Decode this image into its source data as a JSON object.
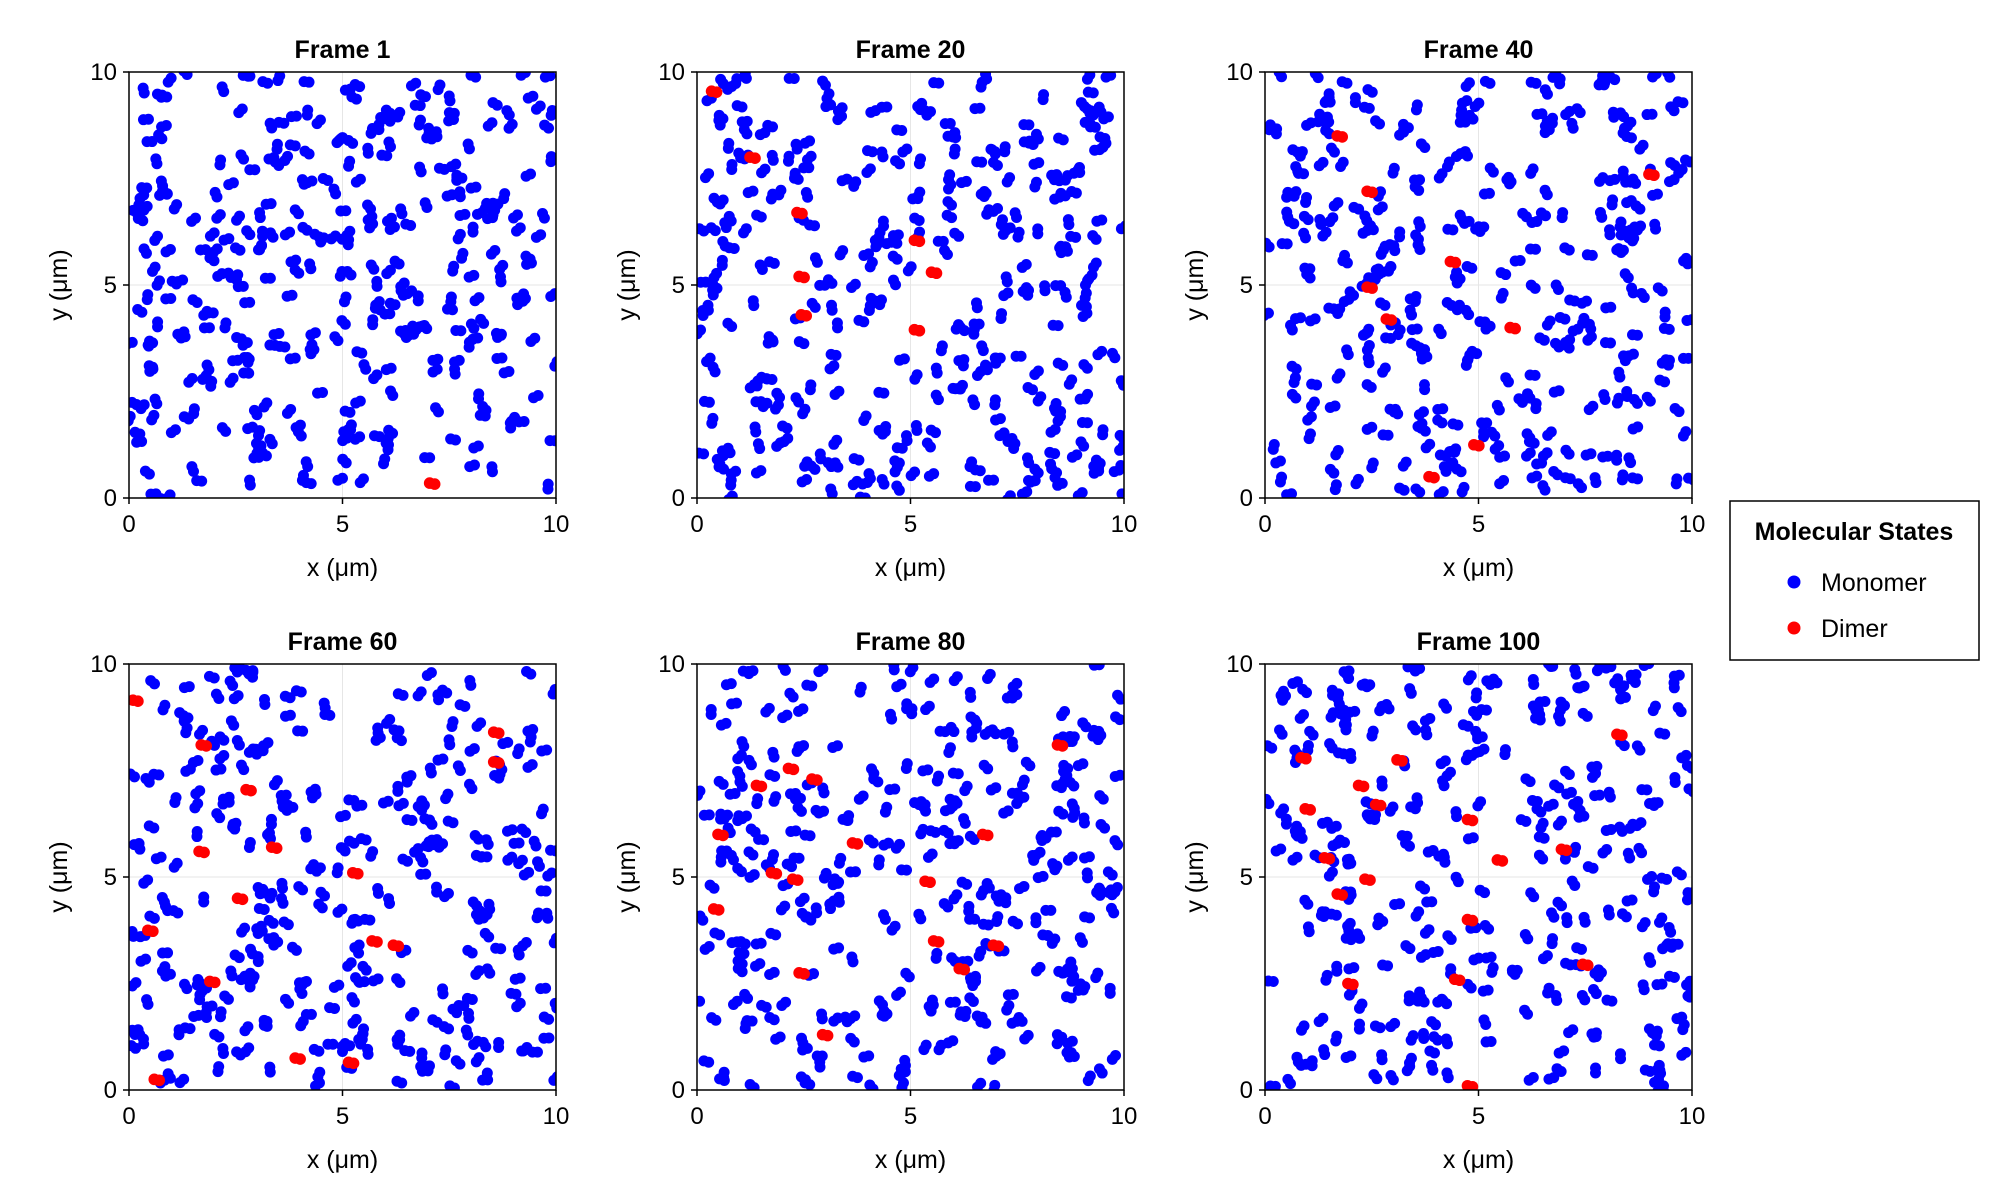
{
  "chart_data": {
    "type": "scatter",
    "colors": {
      "monomer": "#0000ff",
      "dimer": "#ff0000"
    },
    "legend": {
      "title": "Molecular States",
      "placement": "right",
      "entries": [
        {
          "label": "Monomer",
          "color": "#0000ff"
        },
        {
          "label": "Dimer",
          "color": "#ff0000"
        }
      ]
    },
    "panels": [
      {
        "title": "Frame 1",
        "xlabel": "x (μm)",
        "ylabel": "y (μm)",
        "xlim": [
          0,
          10
        ],
        "ylim": [
          0,
          10
        ],
        "xticks": [
          "0",
          "5",
          "10"
        ],
        "yticks": [
          "0",
          "5",
          "10"
        ],
        "grid": true,
        "dimers": [
          [
            7.1,
            0.35
          ]
        ],
        "monomer_seed": 11,
        "monomer_count": 320
      },
      {
        "title": "Frame 20",
        "xlabel": "x (μm)",
        "ylabel": "y (μm)",
        "xlim": [
          0,
          10
        ],
        "ylim": [
          0,
          10
        ],
        "xticks": [
          "0",
          "5",
          "10"
        ],
        "yticks": [
          "0",
          "5",
          "10"
        ],
        "grid": true,
        "dimers": [
          [
            0.4,
            9.55
          ],
          [
            1.3,
            8.0
          ],
          [
            2.4,
            6.7
          ],
          [
            2.45,
            5.2
          ],
          [
            2.5,
            4.3
          ],
          [
            5.15,
            6.05
          ],
          [
            5.55,
            5.3
          ],
          [
            5.15,
            3.95
          ]
        ],
        "monomer_seed": 23,
        "monomer_count": 320
      },
      {
        "title": "Frame 40",
        "xlabel": "x (μm)",
        "ylabel": "y (μm)",
        "xlim": [
          0,
          10
        ],
        "ylim": [
          0,
          10
        ],
        "xticks": [
          "0",
          "5",
          "10"
        ],
        "yticks": [
          "0",
          "5",
          "10"
        ],
        "grid": true,
        "dimers": [
          [
            1.75,
            8.5
          ],
          [
            2.45,
            7.2
          ],
          [
            2.45,
            4.95
          ],
          [
            2.9,
            4.2
          ],
          [
            4.4,
            5.55
          ],
          [
            5.8,
            4.0
          ],
          [
            9.05,
            7.6
          ],
          [
            4.95,
            1.25
          ],
          [
            3.9,
            0.5
          ]
        ],
        "monomer_seed": 37,
        "monomer_count": 310
      },
      {
        "title": "Frame 60",
        "xlabel": "x (μm)",
        "ylabel": "y (μm)",
        "xlim": [
          0,
          10
        ],
        "ylim": [
          0,
          10
        ],
        "xticks": [
          "0",
          "5",
          "10"
        ],
        "yticks": [
          "0",
          "5",
          "10"
        ],
        "grid": true,
        "dimers": [
          [
            0.15,
            9.15
          ],
          [
            1.75,
            8.1
          ],
          [
            1.7,
            5.6
          ],
          [
            2.8,
            7.05
          ],
          [
            2.6,
            4.5
          ],
          [
            3.4,
            5.7
          ],
          [
            0.5,
            3.75
          ],
          [
            1.95,
            2.55
          ],
          [
            0.65,
            0.25
          ],
          [
            3.95,
            0.75
          ],
          [
            5.3,
            5.1
          ],
          [
            5.75,
            3.5
          ],
          [
            6.25,
            3.4
          ],
          [
            8.6,
            8.4
          ],
          [
            8.6,
            7.7
          ],
          [
            5.2,
            0.65
          ]
        ],
        "monomer_seed": 53,
        "monomer_count": 300
      },
      {
        "title": "Frame 80",
        "xlabel": "x (μm)",
        "ylabel": "y (μm)",
        "xlim": [
          0,
          10
        ],
        "ylim": [
          0,
          10
        ],
        "xticks": [
          "0",
          "5",
          "10"
        ],
        "yticks": [
          "0",
          "5",
          "10"
        ],
        "grid": true,
        "dimers": [
          [
            0.55,
            6.0
          ],
          [
            0.45,
            4.25
          ],
          [
            1.45,
            7.15
          ],
          [
            2.2,
            7.55
          ],
          [
            2.75,
            7.3
          ],
          [
            1.8,
            5.1
          ],
          [
            2.3,
            4.95
          ],
          [
            2.45,
            2.75
          ],
          [
            3.7,
            5.8
          ],
          [
            5.4,
            4.9
          ],
          [
            5.6,
            3.5
          ],
          [
            6.2,
            2.85
          ],
          [
            6.75,
            6.0
          ],
          [
            7.0,
            3.4
          ],
          [
            8.5,
            8.1
          ],
          [
            3.0,
            1.3
          ]
        ],
        "monomer_seed": 71,
        "monomer_count": 300
      },
      {
        "title": "Frame 100",
        "xlabel": "x (μm)",
        "ylabel": "y (μm)",
        "xlim": [
          0,
          10
        ],
        "ylim": [
          0,
          10
        ],
        "xticks": [
          "0",
          "5",
          "10"
        ],
        "yticks": [
          "0",
          "5",
          "10"
        ],
        "grid": true,
        "dimers": [
          [
            0.9,
            7.8
          ],
          [
            1.0,
            6.6
          ],
          [
            1.45,
            5.45
          ],
          [
            1.75,
            4.6
          ],
          [
            2.25,
            7.15
          ],
          [
            2.65,
            6.7
          ],
          [
            3.15,
            7.75
          ],
          [
            2.4,
            4.95
          ],
          [
            4.8,
            6.35
          ],
          [
            5.5,
            5.4
          ],
          [
            4.8,
            4.0
          ],
          [
            4.5,
            2.6
          ],
          [
            2.0,
            2.5
          ],
          [
            7.0,
            5.65
          ],
          [
            7.5,
            2.95
          ],
          [
            8.3,
            8.35
          ],
          [
            4.8,
            0.1
          ]
        ],
        "monomer_seed": 97,
        "monomer_count": 290
      }
    ]
  }
}
